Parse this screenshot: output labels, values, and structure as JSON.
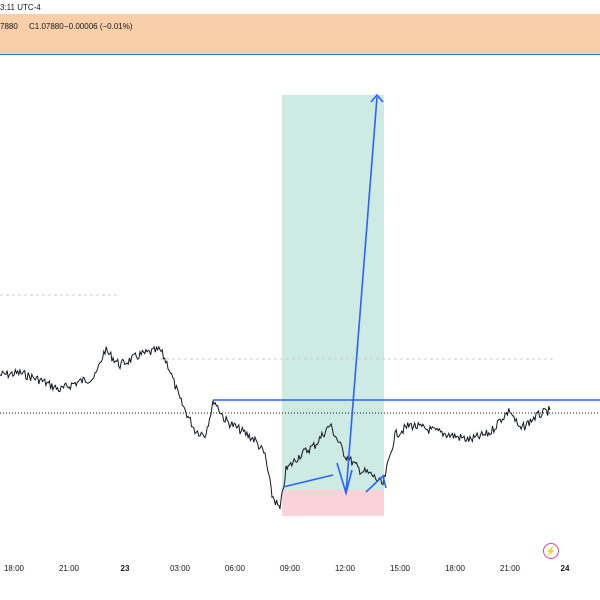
{
  "header": {
    "time_label": "3:11 UTC-4"
  },
  "ohlc": {
    "open_fragment": "7880",
    "close": "C1.07880",
    "change": "−0.00006 (−0.01%)"
  },
  "colors": {
    "header_bg": "#f8cfa8",
    "profit_zone": "#cdebe3",
    "loss_zone": "#f9d3d8",
    "drawing_line": "#2962ff",
    "price_line": "#131722"
  },
  "icons": {
    "alert": "lightning-bolt-icon"
  },
  "time_axis": {
    "ticks": [
      {
        "label": "18:00",
        "bold": false
      },
      {
        "label": "21:00",
        "bold": false
      },
      {
        "label": "23",
        "bold": true
      },
      {
        "label": "03:00",
        "bold": false
      },
      {
        "label": "06:00",
        "bold": false
      },
      {
        "label": "09:00",
        "bold": false
      },
      {
        "label": "12:00",
        "bold": false
      },
      {
        "label": "15:00",
        "bold": false
      },
      {
        "label": "18:00",
        "bold": false
      },
      {
        "label": "21:00",
        "bold": false
      },
      {
        "label": "24",
        "bold": true
      }
    ]
  }
}
